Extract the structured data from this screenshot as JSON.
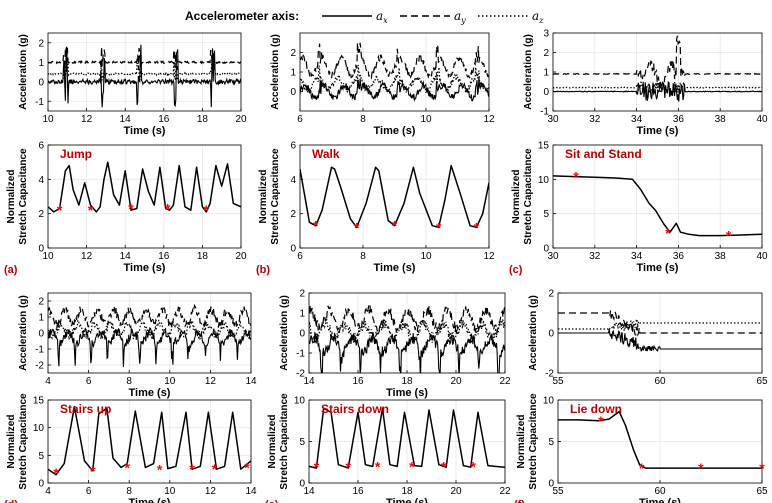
{
  "legend": {
    "title": "Accelerometer axis:",
    "items": [
      {
        "label": "a_x",
        "base": "a",
        "sub": "x",
        "style": "solid"
      },
      {
        "label": "a_y",
        "base": "a",
        "sub": "y",
        "style": "dashed"
      },
      {
        "label": "a_z",
        "base": "a",
        "sub": "z",
        "style": "dotted"
      }
    ]
  },
  "colors": {
    "line": "#000000",
    "marker": "#ff0000",
    "title": "#c00000",
    "grid": "#e6e6e6"
  },
  "chart_data": [
    {
      "id": "a-acc",
      "type": "line",
      "xlabel": "Time (s)",
      "ylabel": "Acceleration (g)",
      "xlim": [
        10,
        20
      ],
      "ylim": [
        -1.5,
        2.5
      ],
      "xticks": [
        10,
        12,
        14,
        16,
        18,
        20
      ],
      "yticks": [
        -1,
        0,
        1,
        2
      ],
      "pattern": "jump",
      "series": [
        {
          "name": "a_x",
          "style": "solid",
          "base": 0
        },
        {
          "name": "a_y",
          "style": "dashed",
          "base": 1
        },
        {
          "name": "a_z",
          "style": "dotted",
          "base": 0.4
        }
      ]
    },
    {
      "id": "a-cap",
      "type": "line",
      "title": "Jump",
      "panel_label": "(a)",
      "xlabel": "Time (s)",
      "ylabel": "Normalized Stretch Capacitance",
      "xlim": [
        10,
        20
      ],
      "ylim": [
        0,
        6
      ],
      "xticks": [
        10,
        12,
        14,
        16,
        18,
        20
      ],
      "yticks": [
        0,
        2,
        4,
        6
      ],
      "x": [
        10,
        10.3,
        10.6,
        10.9,
        11.1,
        11.3,
        11.6,
        11.9,
        12.2,
        12.5,
        12.7,
        12.9,
        13.1,
        13.4,
        13.7,
        14,
        14.3,
        14.6,
        14.9,
        15.2,
        15.5,
        15.8,
        16.1,
        16.3,
        16.5,
        16.8,
        17.1,
        17.4,
        17.7,
        18,
        18.2,
        18.4,
        18.7,
        19,
        19.3,
        19.6,
        20
      ],
      "values": [
        2.4,
        2.1,
        2.3,
        4.5,
        4.8,
        3.4,
        2.5,
        3.8,
        2.5,
        2.1,
        2.4,
        4,
        5,
        3.1,
        2.5,
        4.5,
        2.2,
        2.3,
        4.6,
        3.3,
        2.5,
        4.7,
        2.3,
        2.2,
        2.5,
        4.8,
        2.4,
        2.2,
        4.7,
        2.4,
        2.1,
        2.6,
        4.8,
        3.6,
        4.9,
        2.6,
        2.4
      ],
      "markers": {
        "x": [
          10.6,
          12.2,
          14.3,
          16.2,
          18.2
        ],
        "y": [
          2.2,
          2.2,
          2.3,
          2.3,
          2.2
        ]
      }
    },
    {
      "id": "b-acc",
      "type": "line",
      "xlabel": "Time (s)",
      "ylabel": "Acceleration (g)",
      "xlim": [
        6,
        12
      ],
      "ylim": [
        -1,
        3
      ],
      "xticks": [
        6,
        8,
        10,
        12
      ],
      "yticks": [
        0,
        1,
        2
      ],
      "pattern": "walk",
      "series": [
        {
          "name": "a_x",
          "style": "solid",
          "base": 0
        },
        {
          "name": "a_y",
          "style": "dashed",
          "base": 1.3
        },
        {
          "name": "a_z",
          "style": "dotted",
          "base": 0.4
        }
      ]
    },
    {
      "id": "b-cap",
      "type": "line",
      "title": "Walk",
      "panel_label": "(b)",
      "xlabel": "Time (s)",
      "ylabel": "Normalized Stretch Capacitance",
      "xlim": [
        6,
        12
      ],
      "ylim": [
        0,
        6
      ],
      "xticks": [
        6,
        8,
        10,
        12
      ],
      "yticks": [
        0,
        2,
        4,
        6
      ],
      "x": [
        6,
        6.3,
        6.5,
        6.7,
        7,
        7.1,
        7.3,
        7.6,
        7.8,
        8.1,
        8.4,
        8.5,
        8.8,
        9,
        9.3,
        9.6,
        9.8,
        10.2,
        10.4,
        10.6,
        10.8,
        11.1,
        11.4,
        11.6,
        11.8,
        12
      ],
      "values": [
        4.6,
        1.5,
        1.3,
        2.2,
        4.7,
        4.6,
        3.5,
        1.7,
        1.2,
        2.6,
        4.7,
        4.5,
        1.6,
        1.3,
        2.6,
        4.7,
        3.2,
        1.3,
        1.2,
        2.8,
        4.8,
        3.1,
        1.3,
        1.2,
        2,
        3.8
      ],
      "markers": {
        "x": [
          6.5,
          7.8,
          9.0,
          10.4,
          11.6
        ],
        "y": [
          1.3,
          1.2,
          1.3,
          1.2,
          1.2
        ]
      }
    },
    {
      "id": "c-acc",
      "type": "line",
      "xlabel": "Time (s)",
      "ylabel": "Acceleration (g)",
      "xlim": [
        30,
        40
      ],
      "ylim": [
        -1,
        3
      ],
      "xticks": [
        30,
        32,
        34,
        36,
        38,
        40
      ],
      "yticks": [
        -1,
        0,
        1,
        2,
        3
      ],
      "pattern": "sitstand",
      "series": [
        {
          "name": "a_x",
          "style": "solid",
          "base": 0
        },
        {
          "name": "a_y",
          "style": "dashed",
          "base": 0.9
        },
        {
          "name": "a_z",
          "style": "dotted",
          "base": 0.2
        }
      ]
    },
    {
      "id": "c-cap",
      "type": "line",
      "title": "Sit and Stand",
      "panel_label": "(c)",
      "xlabel": "Time (s)",
      "ylabel": "Normalized Stretch Capacitance",
      "xlim": [
        30,
        40
      ],
      "ylim": [
        0,
        15
      ],
      "xticks": [
        30,
        32,
        34,
        36,
        38,
        40
      ],
      "yticks": [
        0,
        5,
        10,
        15
      ],
      "x": [
        30,
        31,
        32,
        33,
        33.8,
        34.2,
        34.6,
        34.9,
        35.3,
        35.6,
        35.9,
        36.1,
        36.5,
        37,
        38,
        39,
        40
      ],
      "values": [
        10.5,
        10.4,
        10.3,
        10.2,
        10,
        8.5,
        6.5,
        5.5,
        3.5,
        2.3,
        3.6,
        2.3,
        2,
        1.8,
        1.8,
        1.9,
        2
      ],
      "markers": {
        "x": [
          31.1,
          35.5,
          38.4
        ],
        "y": [
          10.4,
          2.2,
          1.8
        ]
      }
    },
    {
      "id": "d-acc",
      "type": "line",
      "xlabel": "Time (s)",
      "ylabel": "Acceleration (g)",
      "xlim": [
        4,
        14
      ],
      "ylim": [
        -2.5,
        2.5
      ],
      "xticks": [
        4,
        6,
        8,
        10,
        12,
        14
      ],
      "yticks": [
        -2,
        -1,
        0,
        1,
        2
      ],
      "pattern": "stairs",
      "series": [
        {
          "name": "a_x",
          "style": "solid",
          "base": -0.3
        },
        {
          "name": "a_y",
          "style": "dashed",
          "base": 1.0
        },
        {
          "name": "a_z",
          "style": "dotted",
          "base": 0.2
        }
      ]
    },
    {
      "id": "d-cap",
      "type": "line",
      "title": "Stairs up",
      "panel_label": "(d)",
      "xlabel": "Time (s)",
      "ylabel": "Normalized Stretch Capacitance",
      "xlim": [
        4,
        14
      ],
      "ylim": [
        0,
        15
      ],
      "xticks": [
        4,
        6,
        8,
        10,
        12,
        14
      ],
      "yticks": [
        0,
        5,
        10,
        15
      ],
      "x": [
        4,
        4.4,
        4.8,
        5.3,
        5.8,
        6.2,
        6.5,
        6.9,
        7.2,
        7.6,
        7.9,
        8.3,
        8.8,
        9.2,
        9.6,
        9.9,
        10.3,
        10.8,
        11.1,
        11.5,
        11.9,
        12.3,
        12.7,
        13.1,
        13.5,
        14
      ],
      "values": [
        2.5,
        1.5,
        3.5,
        13.8,
        4,
        2.2,
        12.5,
        13.5,
        4.5,
        2.8,
        3.5,
        13,
        2.8,
        3.5,
        12.8,
        2.6,
        3,
        12.8,
        2.5,
        3,
        12.8,
        2.5,
        3,
        12.8,
        2.5,
        4
      ],
      "markers": {
        "x": [
          4.4,
          6.2,
          7.9,
          9.5,
          11.1,
          12.2,
          13.8
        ],
        "y": [
          1.8,
          2.2,
          2.8,
          2.4,
          2.5,
          2.5,
          2.8
        ]
      }
    },
    {
      "id": "e-acc",
      "type": "line",
      "xlabel": "Time (s)",
      "ylabel": "Acceleration (g)",
      "xlim": [
        14,
        22
      ],
      "ylim": [
        -2,
        2
      ],
      "xticks": [
        14,
        16,
        18,
        20,
        22
      ],
      "yticks": [
        -2,
        -1,
        0,
        1,
        2
      ],
      "pattern": "stairs",
      "series": [
        {
          "name": "a_x",
          "style": "solid",
          "base": -0.6
        },
        {
          "name": "a_y",
          "style": "dashed",
          "base": 0.7
        },
        {
          "name": "a_z",
          "style": "dotted",
          "base": 0.1
        }
      ]
    },
    {
      "id": "e-cap",
      "type": "line",
      "title": "Stairs down",
      "panel_label": "(e)",
      "xlabel": "Time (s)",
      "ylabel": "Normalized Stretch Capacitance",
      "xlim": [
        14,
        22
      ],
      "ylim": [
        0,
        10
      ],
      "xticks": [
        14,
        16,
        18,
        20,
        22
      ],
      "yticks": [
        0,
        5,
        10
      ],
      "x": [
        14,
        14.3,
        14.6,
        14.9,
        15.2,
        15.6,
        16,
        16.3,
        16.6,
        17,
        17.3,
        17.6,
        17.9,
        18.3,
        18.6,
        18.9,
        19.3,
        19.6,
        19.9,
        20.3,
        20.6,
        20.9,
        21.3,
        21.6,
        22
      ],
      "values": [
        2,
        1.8,
        9,
        8.5,
        2.2,
        1.8,
        8.5,
        2.2,
        2,
        9,
        2.2,
        2,
        8.5,
        2.1,
        2,
        8.8,
        2.2,
        1.9,
        8.8,
        2.1,
        1.9,
        8.5,
        2.1,
        2,
        1.9
      ],
      "markers": {
        "x": [
          14.3,
          15.6,
          16.8,
          18.2,
          19.5,
          20.7
        ],
        "y": [
          1.9,
          1.9,
          2,
          2,
          2,
          2
        ]
      }
    },
    {
      "id": "f-acc",
      "type": "line",
      "xlabel": "",
      "ylabel": "Acceleration (g)",
      "xlim": [
        55,
        65
      ],
      "ylim": [
        -2,
        2
      ],
      "xticks": [
        55,
        60,
        65
      ],
      "yticks": [
        -2,
        0,
        2
      ],
      "pattern": "liedown",
      "series": [
        {
          "name": "a_x",
          "style": "solid",
          "base": 0
        },
        {
          "name": "a_y",
          "style": "dashed",
          "base": 1
        },
        {
          "name": "a_z",
          "style": "dotted",
          "base": 0.2
        }
      ]
    },
    {
      "id": "f-cap",
      "type": "line",
      "title": "Lie down",
      "panel_label": "(f)",
      "xlabel": "Time (s)",
      "ylabel": "Normalized Stretch Capacitance",
      "xlim": [
        55,
        65
      ],
      "ylim": [
        0,
        10
      ],
      "xticks": [
        55,
        60,
        65
      ],
      "yticks": [
        0,
        5,
        10
      ],
      "x": [
        55,
        56,
        57,
        57.5,
        58,
        58.3,
        58.7,
        59,
        59.3,
        60,
        61,
        62,
        63,
        64,
        65
      ],
      "values": [
        7.6,
        7.6,
        7.5,
        7.7,
        8.6,
        7,
        4,
        2.2,
        1.8,
        1.8,
        1.8,
        1.8,
        1.8,
        1.8,
        1.8
      ],
      "markers": {
        "x": [
          57.1,
          59.1,
          62,
          65
        ],
        "y": [
          7.5,
          1.8,
          1.8,
          1.8
        ]
      }
    }
  ]
}
